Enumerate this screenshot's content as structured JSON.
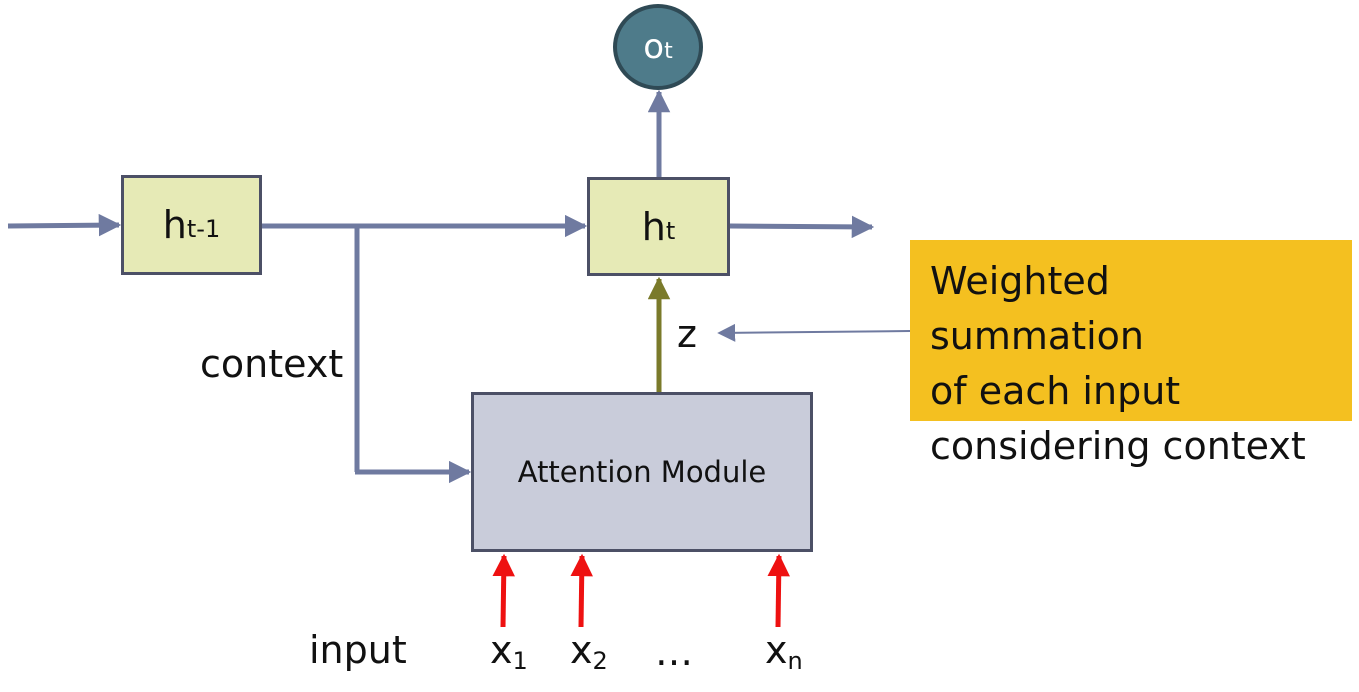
{
  "nodes": {
    "output": {
      "main": "o",
      "sub": "t"
    },
    "h_prev": {
      "main": "h",
      "sub": "t-1"
    },
    "h_current": {
      "main": "h",
      "sub": "t"
    },
    "attention_module": "Attention Module"
  },
  "labels": {
    "context": "context",
    "z": "z",
    "input": "input",
    "ellipsis": "…"
  },
  "inputs": [
    {
      "main": "x",
      "sub": "1"
    },
    {
      "main": "x",
      "sub": "2"
    },
    {
      "main": "x",
      "sub": "n"
    }
  ],
  "callout": {
    "line1": "Weighted summation",
    "line2": "of each input",
    "line3": "considering context"
  },
  "colors": {
    "flow_arrow": "#6f7aa0",
    "z_arrow": "#7a7a2a",
    "input_arrow": "#ee1111",
    "hidden_box": "#e6eab6",
    "attention_box": "#c9ccda",
    "output_circle": "#4e7b8a",
    "callout_box": "#f4c020"
  }
}
